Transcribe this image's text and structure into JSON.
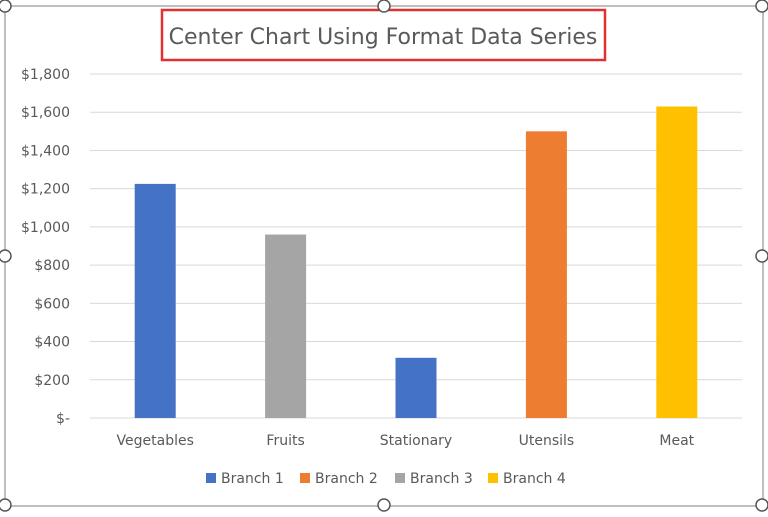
{
  "chart_data": {
    "type": "bar",
    "title": "Center Chart Using Format Data Series",
    "xlabel": "",
    "ylabel": "",
    "ylim": [
      0,
      1800
    ],
    "y_ticks": [
      0,
      200,
      400,
      600,
      800,
      1000,
      1200,
      1400,
      1600,
      1800
    ],
    "y_tick_labels": [
      "$-",
      "$200",
      "$400",
      "$600",
      "$800",
      "$1,000",
      "$1,200",
      "$1,400",
      "$1,600",
      "$1,800"
    ],
    "categories": [
      "Vegetables",
      "Fruits",
      "Stationary",
      "Utensils",
      "Meat"
    ],
    "series": [
      {
        "name": "Branch 1",
        "color": "#4472C4",
        "values": [
          1225,
          null,
          315,
          null,
          null
        ]
      },
      {
        "name": "Branch 2",
        "color": "#ED7D31",
        "values": [
          null,
          null,
          null,
          1500,
          null
        ]
      },
      {
        "name": "Branch 3",
        "color": "#A5A5A5",
        "values": [
          null,
          960,
          null,
          null,
          null
        ]
      },
      {
        "name": "Branch 4",
        "color": "#FFC000",
        "values": [
          null,
          null,
          null,
          null,
          1630
        ]
      }
    ],
    "grid": true,
    "legend": "bottom"
  }
}
